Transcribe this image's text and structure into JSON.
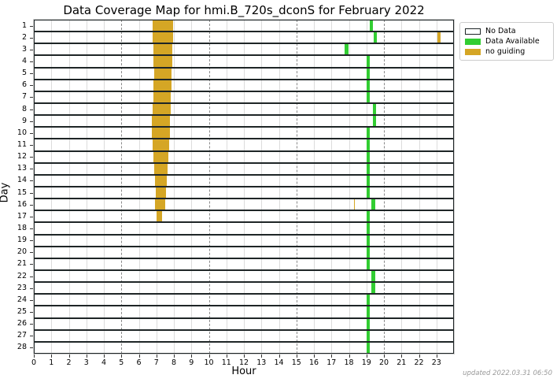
{
  "title": "Data Coverage Map for hmi.B_720s_dconS for February 2022",
  "updated_note": "updated 2022.03.31 06:50",
  "chart_data": {
    "type": "heatmap",
    "subtype": "time-coverage broken horizontal bars (matplotlib style)",
    "title": "Data Coverage Map for hmi.B_720s_dconS for February 2022",
    "xlabel": "Hour",
    "ylabel": "Day",
    "xlim": [
      0,
      24
    ],
    "x_ticks": [
      0,
      1,
      2,
      3,
      4,
      5,
      6,
      7,
      8,
      9,
      10,
      11,
      12,
      13,
      14,
      15,
      16,
      17,
      18,
      19,
      20,
      21,
      22,
      23
    ],
    "grid_major_hours": [
      5,
      10,
      15,
      20
    ],
    "days": [
      1,
      2,
      3,
      4,
      5,
      6,
      7,
      8,
      9,
      10,
      11,
      12,
      13,
      14,
      15,
      16,
      17,
      18,
      19,
      20,
      21,
      22,
      23,
      24,
      25,
      26,
      27,
      28
    ],
    "legend": {
      "position": "outside upper right",
      "entries": [
        {
          "label": "No Data",
          "color": "#ffffff",
          "border": "#1e2526"
        },
        {
          "label": "Data Available",
          "color": "#32cd32",
          "border": "none"
        },
        {
          "label": "no guiding",
          "color": "#d5a625",
          "border": "none"
        }
      ]
    },
    "colors": {
      "no_data_fill": "#ffffff",
      "data_available": "#32cd32",
      "no_guiding": "#d5a625",
      "band_border": "#1e2526",
      "grid_minor": "#dcdcdc",
      "grid_major": "#8a8a8a"
    },
    "segments": {
      "data_available": [
        {
          "day": 1,
          "start": 19.19,
          "end": 19.37
        },
        {
          "day": 2,
          "start": 19.42,
          "end": 19.6
        },
        {
          "day": 3,
          "start": 17.75,
          "end": 17.97
        },
        {
          "day": 4,
          "start": 19.0,
          "end": 19.2
        },
        {
          "day": 5,
          "start": 19.0,
          "end": 19.2
        },
        {
          "day": 6,
          "start": 19.0,
          "end": 19.2
        },
        {
          "day": 7,
          "start": 19.0,
          "end": 19.2
        },
        {
          "day": 8,
          "start": 19.37,
          "end": 19.55
        },
        {
          "day": 9,
          "start": 19.37,
          "end": 19.55
        },
        {
          "day": 10,
          "start": 19.0,
          "end": 19.2
        },
        {
          "day": 11,
          "start": 19.0,
          "end": 19.2
        },
        {
          "day": 12,
          "start": 19.0,
          "end": 19.2
        },
        {
          "day": 13,
          "start": 19.0,
          "end": 19.2
        },
        {
          "day": 14,
          "start": 19.0,
          "end": 19.2
        },
        {
          "day": 15,
          "start": 19.0,
          "end": 19.2
        },
        {
          "day": 16,
          "start": 19.28,
          "end": 19.5
        },
        {
          "day": 17,
          "start": 19.0,
          "end": 19.2
        },
        {
          "day": 18,
          "start": 19.0,
          "end": 19.2
        },
        {
          "day": 19,
          "start": 19.0,
          "end": 19.2
        },
        {
          "day": 20,
          "start": 19.0,
          "end": 19.2
        },
        {
          "day": 21,
          "start": 19.0,
          "end": 19.2
        },
        {
          "day": 22,
          "start": 19.28,
          "end": 19.5
        },
        {
          "day": 23,
          "start": 19.28,
          "end": 19.5
        },
        {
          "day": 24,
          "start": 19.0,
          "end": 19.2
        },
        {
          "day": 25,
          "start": 19.0,
          "end": 19.2
        },
        {
          "day": 26,
          "start": 19.0,
          "end": 19.2
        },
        {
          "day": 27,
          "start": 19.0,
          "end": 19.2
        },
        {
          "day": 28,
          "start": 19.0,
          "end": 19.2
        }
      ],
      "no_guiding": [
        {
          "day": 1,
          "start": 6.78,
          "end": 7.95
        },
        {
          "day": 2,
          "start": 6.78,
          "end": 7.95
        },
        {
          "day": 2,
          "start": 23.05,
          "end": 23.25
        },
        {
          "day": 3,
          "start": 6.83,
          "end": 7.9
        },
        {
          "day": 4,
          "start": 6.85,
          "end": 7.9
        },
        {
          "day": 5,
          "start": 6.87,
          "end": 7.86
        },
        {
          "day": 6,
          "start": 6.83,
          "end": 7.86
        },
        {
          "day": 7,
          "start": 6.83,
          "end": 7.82
        },
        {
          "day": 8,
          "start": 6.78,
          "end": 7.82
        },
        {
          "day": 9,
          "start": 6.74,
          "end": 7.77
        },
        {
          "day": 10,
          "start": 6.76,
          "end": 7.77
        },
        {
          "day": 11,
          "start": 6.78,
          "end": 7.73
        },
        {
          "day": 12,
          "start": 6.83,
          "end": 7.68
        },
        {
          "day": 13,
          "start": 6.87,
          "end": 7.64
        },
        {
          "day": 14,
          "start": 6.92,
          "end": 7.59
        },
        {
          "day": 15,
          "start": 6.96,
          "end": 7.55
        },
        {
          "day": 16,
          "start": 6.92,
          "end": 7.5
        },
        {
          "day": 16,
          "start": 18.29,
          "end": 18.36
        },
        {
          "day": 17,
          "start": 7.0,
          "end": 7.32
        }
      ]
    }
  }
}
